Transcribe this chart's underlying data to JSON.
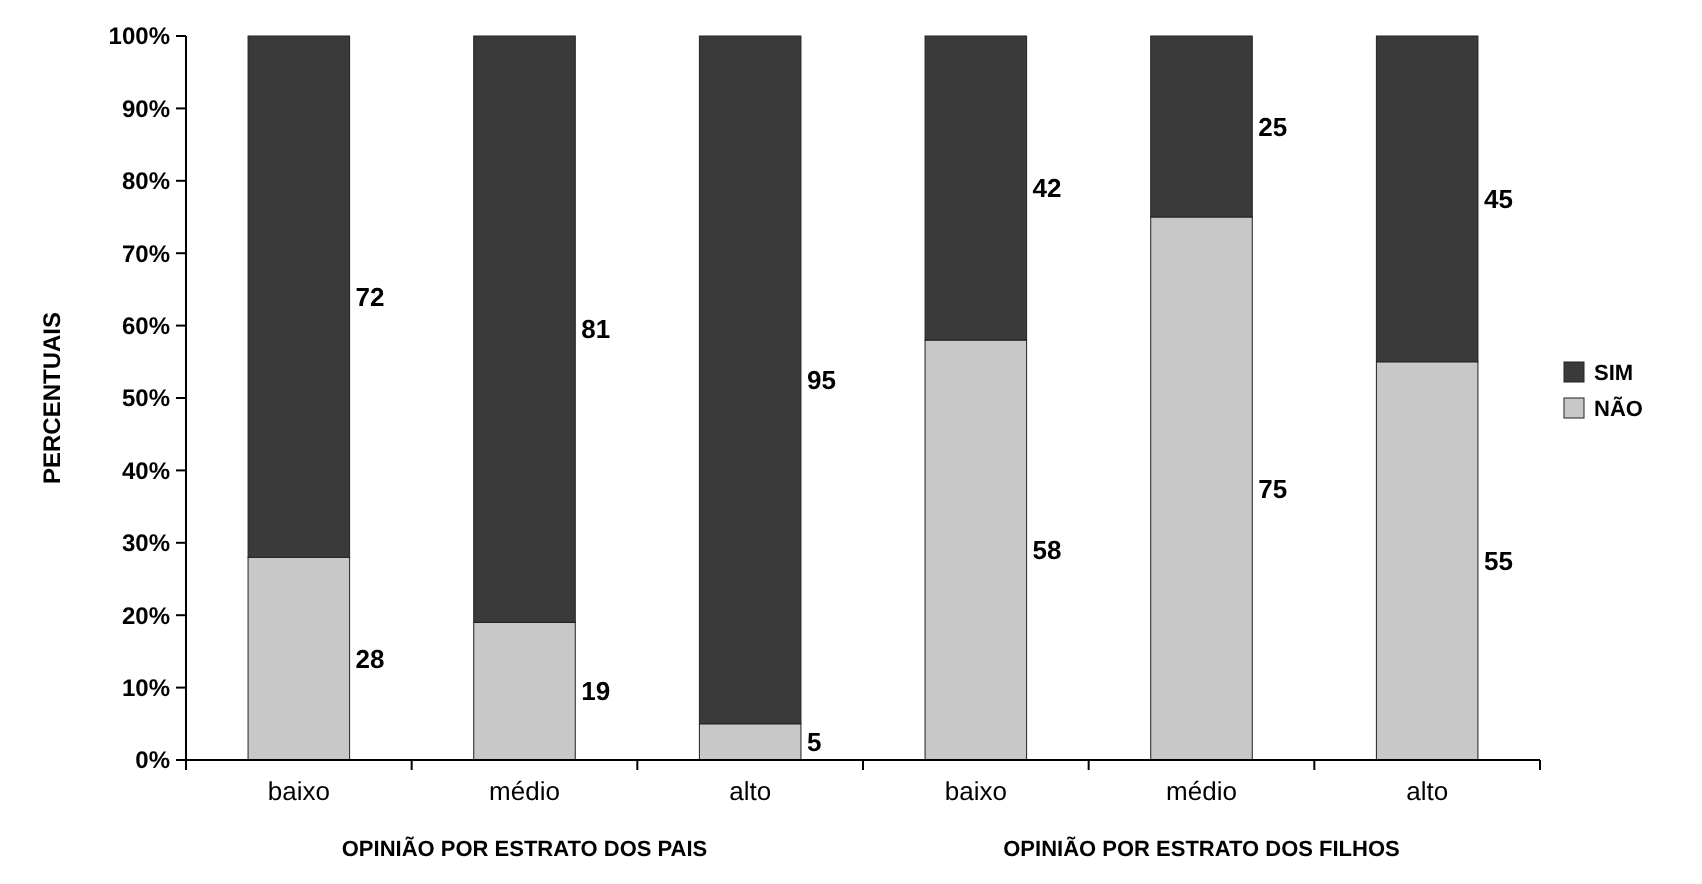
{
  "chart_data": {
    "type": "bar",
    "stacked": true,
    "ylabel": "PERCENTUAIS",
    "categories": [
      "baixo",
      "médio",
      "alto",
      "baixo",
      "médio",
      "alto"
    ],
    "series": [
      {
        "name": "NÃO",
        "color": "#c8c8c8",
        "values": [
          28,
          19,
          5,
          58,
          75,
          55
        ]
      },
      {
        "name": "SIM",
        "color": "#3a3a3a",
        "values": [
          72,
          81,
          95,
          42,
          25,
          45
        ]
      }
    ],
    "ylim": [
      0,
      100
    ],
    "yticks": [
      {
        "value": 0,
        "label": "0%"
      },
      {
        "value": 10,
        "label": "10%"
      },
      {
        "value": 20,
        "label": "20%"
      },
      {
        "value": 30,
        "label": "30%"
      },
      {
        "value": 40,
        "label": "40%"
      },
      {
        "value": 50,
        "label": "50%"
      },
      {
        "value": 60,
        "label": "60%"
      },
      {
        "value": 70,
        "label": "70%"
      },
      {
        "value": 80,
        "label": "80%"
      },
      {
        "value": 90,
        "label": "90%"
      },
      {
        "value": 100,
        "label": "100%"
      }
    ],
    "data_labels": true,
    "legend": "right",
    "grid": false,
    "annotations": [
      "OPINIÃO POR ESTRATO DOS PAIS",
      "OPINIÃO POR ESTRATO DOS FILHOS"
    ]
  }
}
